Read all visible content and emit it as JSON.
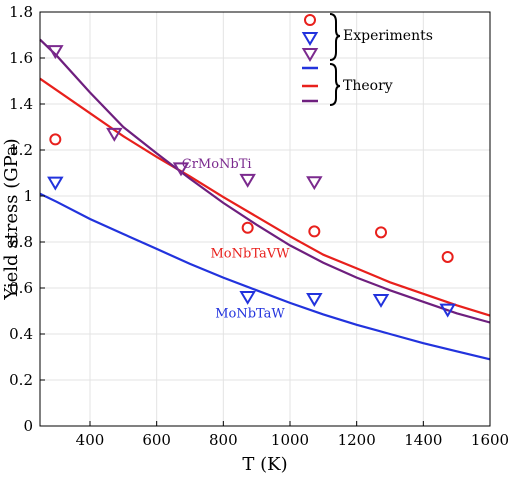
{
  "chart_data": {
    "type": "scatter",
    "xlabel": "T (K)",
    "ylabel": "Yield stress (GPa)",
    "xlim": [
      250,
      1600
    ],
    "ylim": [
      0,
      1.8
    ],
    "xticks": [
      400,
      600,
      800,
      1000,
      1200,
      1400,
      1600
    ],
    "yticks": [
      0,
      0.2,
      0.4,
      0.6,
      0.8,
      1,
      1.2,
      1.4,
      1.6,
      1.8
    ],
    "grid": true,
    "legend_position": "top-right",
    "legend": {
      "experiments_label": "Experiments",
      "theory_label": "Theory"
    },
    "annotations": [
      {
        "text": "CrMoNbTi",
        "x": 780,
        "y": 1.14,
        "color": "#7b2a8e"
      },
      {
        "text": "MoNbTaVW",
        "x": 880,
        "y": 0.75,
        "color": "#e8201c"
      },
      {
        "text": "MoNbTaW",
        "x": 880,
        "y": 0.49,
        "color": "#2233dd"
      }
    ],
    "series": [
      {
        "kind": "experiment",
        "marker": "circle",
        "color": "#e8201c",
        "x": [
          296,
          873,
          1073,
          1273,
          1473
        ],
        "y": [
          1.246,
          0.862,
          0.846,
          0.842,
          0.735
        ]
      },
      {
        "kind": "experiment",
        "marker": "triangle-down",
        "color": "#2233dd",
        "x": [
          296,
          873,
          1073,
          1273,
          1473
        ],
        "y": [
          1.058,
          0.561,
          0.552,
          0.548,
          0.506
        ]
      },
      {
        "kind": "experiment",
        "marker": "triangle-down",
        "color": "#7b2a8e",
        "x": [
          296,
          473,
          673,
          873,
          1073
        ],
        "y": [
          1.63,
          1.27,
          1.12,
          1.07,
          1.06
        ]
      },
      {
        "kind": "theory",
        "color": "#2233dd",
        "x": [
          250,
          300,
          400,
          500,
          600,
          700,
          800,
          900,
          1000,
          1100,
          1200,
          1300,
          1400,
          1500,
          1600
        ],
        "y": [
          1.01,
          0.975,
          0.9,
          0.835,
          0.77,
          0.705,
          0.645,
          0.59,
          0.535,
          0.485,
          0.44,
          0.4,
          0.36,
          0.325,
          0.29
        ]
      },
      {
        "kind": "theory",
        "color": "#e8201c",
        "x": [
          250,
          300,
          400,
          500,
          600,
          700,
          800,
          900,
          1000,
          1100,
          1200,
          1300,
          1400,
          1500,
          1600
        ],
        "y": [
          1.51,
          1.46,
          1.36,
          1.26,
          1.17,
          1.085,
          0.995,
          0.91,
          0.825,
          0.745,
          0.685,
          0.625,
          0.575,
          0.525,
          0.48
        ]
      },
      {
        "kind": "theory",
        "color": "#6e1f7e",
        "x": [
          250,
          300,
          400,
          500,
          600,
          700,
          800,
          900,
          1000,
          1100,
          1200,
          1300,
          1400,
          1500,
          1600
        ],
        "y": [
          1.68,
          1.61,
          1.45,
          1.3,
          1.185,
          1.075,
          0.97,
          0.875,
          0.785,
          0.71,
          0.645,
          0.59,
          0.54,
          0.49,
          0.45
        ]
      }
    ]
  }
}
